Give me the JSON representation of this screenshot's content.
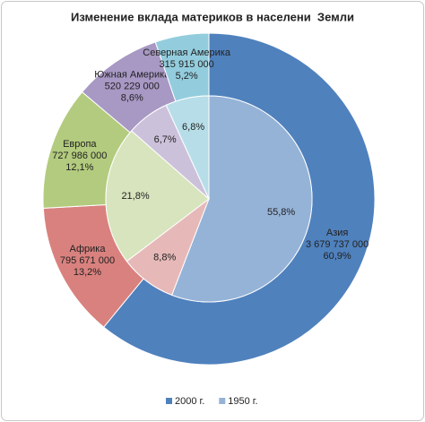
{
  "chart_data": {
    "type": "doughnut",
    "title": "Изменение вклада материков в населени  Земли",
    "categories": [
      "Азия",
      "Африка",
      "Европа",
      "Южная Америка",
      "Северная Америка"
    ],
    "series": [
      {
        "name": "2000 г.",
        "colors": [
          "#4f81bd",
          "#d9817e",
          "#b3cb7e",
          "#a898c4",
          "#93cddd"
        ],
        "values": [
          3679737000,
          795671000,
          727986000,
          520229000,
          315915000
        ],
        "value_labels": [
          "3 679 737 000",
          "795 671 000",
          "727 986 000",
          "520 229 000",
          "315 915 000"
        ],
        "percents": [
          60.9,
          13.2,
          12.1,
          8.6,
          5.2
        ],
        "percent_labels": [
          "60,9%",
          "13,2%",
          "12,1%",
          "8,6%",
          "5,2%"
        ]
      },
      {
        "name": "1950 г.",
        "colors": [
          "#95b3d7",
          "#e6b9b8",
          "#d7e4bd",
          "#ccc1da",
          "#b7dee8"
        ],
        "values": [
          55.8,
          8.8,
          21.8,
          6.7,
          6.8
        ],
        "value_labels": [
          "55,8%",
          "8,8%",
          "21,8%",
          "6,7%",
          "6,8%"
        ]
      }
    ],
    "legend": "bottom"
  }
}
